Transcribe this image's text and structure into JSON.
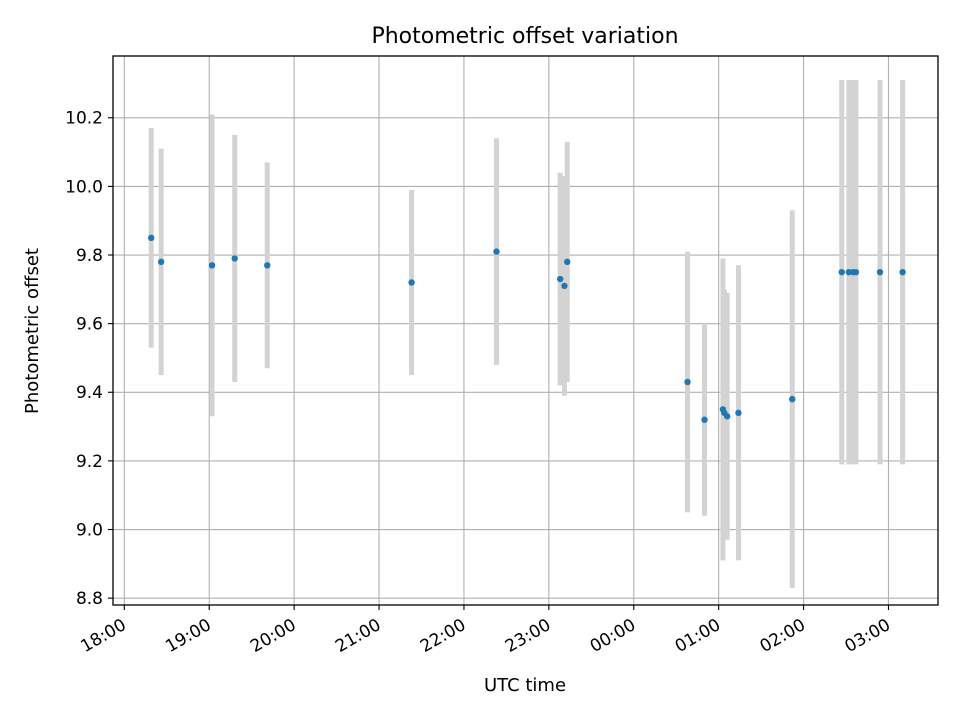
{
  "chart_data": {
    "type": "scatter",
    "title": "Photometric offset variation",
    "xlabel": "UTC time",
    "ylabel": "Photometric offset",
    "x_axis": "time",
    "x_range": [
      "2000-01-01T17:52",
      "2000-01-02T03:35"
    ],
    "ylim": [
      8.78,
      10.38
    ],
    "x_ticks": [
      "18:00",
      "19:00",
      "20:00",
      "21:00",
      "22:00",
      "23:00",
      "00:00",
      "01:00",
      "02:00",
      "03:00"
    ],
    "y_ticks": [
      "8.8",
      "9.0",
      "9.2",
      "9.4",
      "9.6",
      "9.8",
      "10.0",
      "10.2"
    ],
    "grid": true,
    "marker_color": "#1f77b4",
    "errorbar_color": "#d3d3d3",
    "series": [
      {
        "points": [
          {
            "time": "18:19",
            "y": 9.85,
            "err": 0.32
          },
          {
            "time": "18:26",
            "y": 9.78,
            "err": 0.33
          },
          {
            "time": "19:02",
            "y": 9.77,
            "err": 0.44
          },
          {
            "time": "19:18",
            "y": 9.79,
            "err": 0.36
          },
          {
            "time": "19:41",
            "y": 9.77,
            "err": 0.3
          },
          {
            "time": "21:23",
            "y": 9.72,
            "err": 0.27
          },
          {
            "time": "22:23",
            "y": 9.81,
            "err": 0.33
          },
          {
            "time": "23:08",
            "y": 9.73,
            "err": 0.31
          },
          {
            "time": "23:11",
            "y": 9.71,
            "err": 0.32
          },
          {
            "time": "23:13",
            "y": 9.78,
            "err": 0.35
          },
          {
            "time": "00:38",
            "y": 9.43,
            "err": 0.38
          },
          {
            "time": "00:50",
            "y": 9.32,
            "err": 0.28
          },
          {
            "time": "01:03",
            "y": 9.35,
            "err": 0.44
          },
          {
            "time": "01:04",
            "y": 9.34,
            "err": 0.36
          },
          {
            "time": "01:06",
            "y": 9.33,
            "err": 0.36
          },
          {
            "time": "01:14",
            "y": 9.34,
            "err": 0.43
          },
          {
            "time": "01:52",
            "y": 9.38,
            "err": 0.55
          },
          {
            "time": "02:27",
            "y": 9.75,
            "err": 0.56
          },
          {
            "time": "02:32",
            "y": 9.75,
            "err": 0.56
          },
          {
            "time": "02:35",
            "y": 9.75,
            "err": 0.56
          },
          {
            "time": "02:37",
            "y": 9.75,
            "err": 0.56
          },
          {
            "time": "02:54",
            "y": 9.75,
            "err": 0.56
          },
          {
            "time": "03:10",
            "y": 9.75,
            "err": 0.56
          }
        ]
      }
    ]
  }
}
